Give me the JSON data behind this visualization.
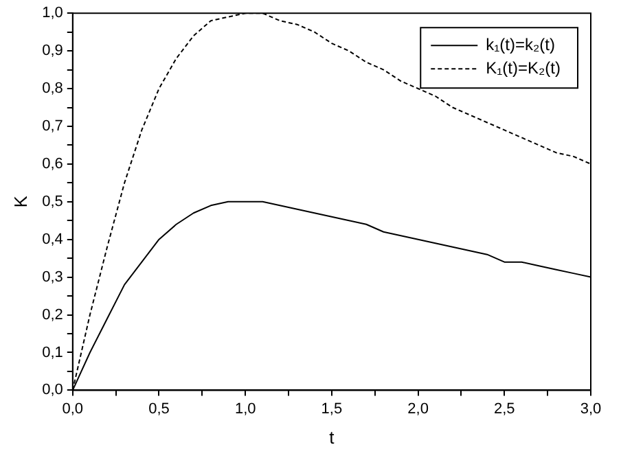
{
  "chart_data": {
    "type": "line",
    "xlabel": "t",
    "ylabel": "K",
    "x": [
      0,
      0.1,
      0.2,
      0.3,
      0.4,
      0.5,
      0.6,
      0.7,
      0.8,
      0.9,
      1,
      1.1,
      1.2,
      1.3,
      1.4,
      1.5,
      1.6,
      1.7,
      1.8,
      1.9,
      2,
      2.1,
      2.2,
      2.3,
      2.4,
      2.5,
      2.6,
      2.7,
      2.8,
      2.9,
      3
    ],
    "series": [
      {
        "name": "k₁(t)=k₂(t)",
        "color": "#000000",
        "line_style": "solid",
        "values": [
          0,
          0.1,
          0.19,
          0.28,
          0.34,
          0.4,
          0.44,
          0.47,
          0.49,
          0.5,
          0.5,
          0.5,
          0.49,
          0.48,
          0.47,
          0.46,
          0.45,
          0.44,
          0.42,
          0.41,
          0.4,
          0.39,
          0.38,
          0.37,
          0.36,
          0.34,
          0.34,
          0.33,
          0.32,
          0.31,
          0.3
        ]
      },
      {
        "name": "K₁(t)=K₂(t)",
        "color": "#000000",
        "line_style": "dashed",
        "values": [
          0,
          0.2,
          0.38,
          0.55,
          0.69,
          0.8,
          0.88,
          0.94,
          0.98,
          0.99,
          1,
          1,
          0.98,
          0.97,
          0.95,
          0.92,
          0.9,
          0.87,
          0.85,
          0.82,
          0.8,
          0.78,
          0.75,
          0.73,
          0.71,
          0.69,
          0.67,
          0.65,
          0.63,
          0.62,
          0.6
        ]
      }
    ],
    "xlim": [
      0,
      3
    ],
    "xticks": [
      {
        "value": 0,
        "label": "0,0"
      },
      {
        "value": 0.25,
        "label": null
      },
      {
        "value": 0.5,
        "label": "0,5"
      },
      {
        "value": 0.75,
        "label": null
      },
      {
        "value": 1,
        "label": "1,0"
      },
      {
        "value": 1.25,
        "label": null
      },
      {
        "value": 1.5,
        "label": "1,5"
      },
      {
        "value": 1.75,
        "label": null
      },
      {
        "value": 2,
        "label": "2,0"
      },
      {
        "value": 2.25,
        "label": null
      },
      {
        "value": 2.5,
        "label": "2,5"
      },
      {
        "value": 2.75,
        "label": null
      },
      {
        "value": 3,
        "label": "3,0"
      }
    ],
    "ylim": [
      0,
      1
    ],
    "yticks": [
      {
        "value": 0,
        "label": "0,0"
      },
      {
        "value": 0.05,
        "label": null
      },
      {
        "value": 0.1,
        "label": "0,1"
      },
      {
        "value": 0.15,
        "label": null
      },
      {
        "value": 0.2,
        "label": "0,2"
      },
      {
        "value": 0.25,
        "label": null
      },
      {
        "value": 0.3,
        "label": "0,3"
      },
      {
        "value": 0.35,
        "label": null
      },
      {
        "value": 0.4,
        "label": "0,4"
      },
      {
        "value": 0.45,
        "label": null
      },
      {
        "value": 0.5,
        "label": "0,5"
      },
      {
        "value": 0.55,
        "label": null
      },
      {
        "value": 0.6,
        "label": "0,6"
      },
      {
        "value": 0.65,
        "label": null
      },
      {
        "value": 0.7,
        "label": "0,7"
      },
      {
        "value": 0.75,
        "label": null
      },
      {
        "value": 0.8,
        "label": "0,8"
      },
      {
        "value": 0.85,
        "label": null
      },
      {
        "value": 0.9,
        "label": "0,9"
      },
      {
        "value": 0.95,
        "label": null
      },
      {
        "value": 1,
        "label": "1,0"
      }
    ],
    "grid": false,
    "legend": "top right",
    "marker": "none"
  }
}
